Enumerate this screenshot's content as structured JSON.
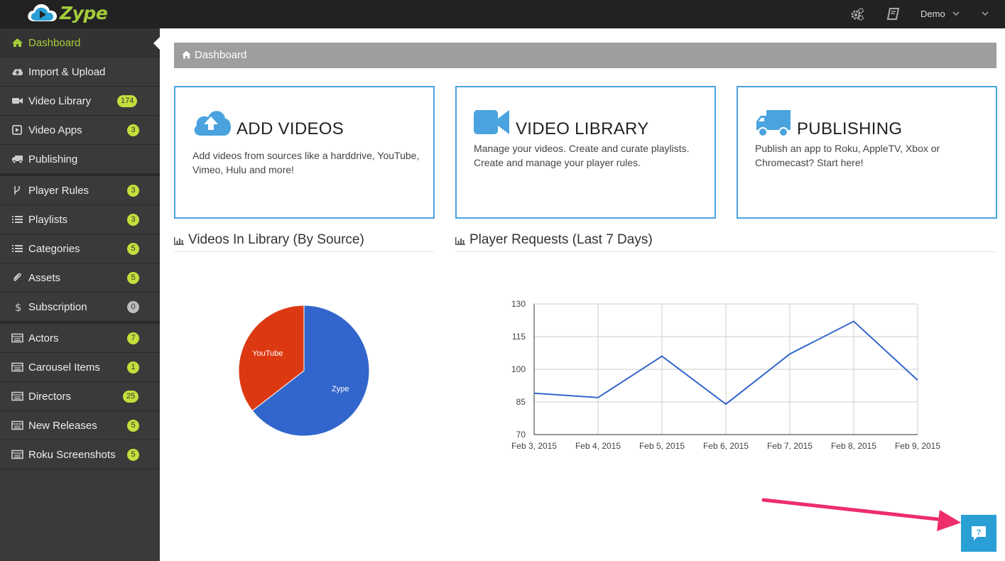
{
  "app": {
    "logo_text": "Zype"
  },
  "topbar": {
    "user": "Demo"
  },
  "sidebar": {
    "items": [
      {
        "label": "Dashboard",
        "icon": "home-icon",
        "active": true
      },
      {
        "label": "Import & Upload",
        "icon": "cloud-upload-icon"
      },
      {
        "label": "Video Library",
        "icon": "video-camera-icon",
        "badge": "174"
      },
      {
        "label": "Video Apps",
        "icon": "play-square-icon",
        "badge": "3"
      },
      {
        "label": "Publishing",
        "icon": "truck-icon"
      },
      {
        "label": "Player Rules",
        "icon": "branch-icon",
        "badge": "3"
      },
      {
        "label": "Playlists",
        "icon": "list-icon",
        "badge": "3"
      },
      {
        "label": "Categories",
        "icon": "list-icon",
        "badge": "5"
      },
      {
        "label": "Assets",
        "icon": "paperclip-icon",
        "badge": "5"
      },
      {
        "label": "Subscription",
        "icon": "dollar-icon",
        "badge": "0"
      },
      {
        "label": "Actors",
        "icon": "table-icon",
        "badge": "7"
      },
      {
        "label": "Carousel Items",
        "icon": "table-icon",
        "badge": "1"
      },
      {
        "label": "Directors",
        "icon": "table-icon",
        "badge": "25"
      },
      {
        "label": "New Releases",
        "icon": "table-icon",
        "badge": "5"
      },
      {
        "label": "Roku Screenshots",
        "icon": "table-icon",
        "badge": "5"
      }
    ]
  },
  "breadcrumb": {
    "label": "Dashboard"
  },
  "cards": [
    {
      "title": "ADD VIDEOS",
      "desc": "Add videos from sources like a harddrive, YouTube, Vimeo, Hulu and more!",
      "icon": "cloud-upload-icon"
    },
    {
      "title": "VIDEO LIBRARY",
      "desc": "Manage your videos. Create and curate playlists. Create and manage your player rules.",
      "icon": "video-camera-icon"
    },
    {
      "title": "PUBLISHING",
      "desc": "Publish an app to Roku, AppleTV, Xbox or Chromecast? Start here!",
      "icon": "truck-icon"
    }
  ],
  "sections": {
    "library": "Videos In Library (By Source)",
    "requests": "Player Requests (Last 7 Days)"
  },
  "colors": {
    "accent": "#a4cc3b",
    "card_border": "#4aa3df",
    "pie_zype": "#3366cc",
    "pie_youtube": "#dc3912",
    "line": "#3366cc"
  },
  "chart_data": [
    {
      "type": "pie",
      "title": "Videos In Library (By Source)",
      "slices": [
        {
          "label": "Zype",
          "value": 64.5
        },
        {
          "label": "YouTube",
          "value": 35.5
        }
      ]
    },
    {
      "type": "line",
      "title": "Player Requests (Last 7 Days)",
      "x": [
        "Feb 3, 2015",
        "Feb 4, 2015",
        "Feb 5, 2015",
        "Feb 6, 2015",
        "Feb 7, 2015",
        "Feb 8, 2015",
        "Feb 9, 2015"
      ],
      "series": [
        {
          "values": [
            89,
            87,
            106,
            84,
            107,
            122,
            95
          ]
        }
      ],
      "yticks": [
        "130",
        "115",
        "100",
        "85",
        "70"
      ],
      "ylim": [
        70,
        130
      ],
      "grid": true
    }
  ]
}
